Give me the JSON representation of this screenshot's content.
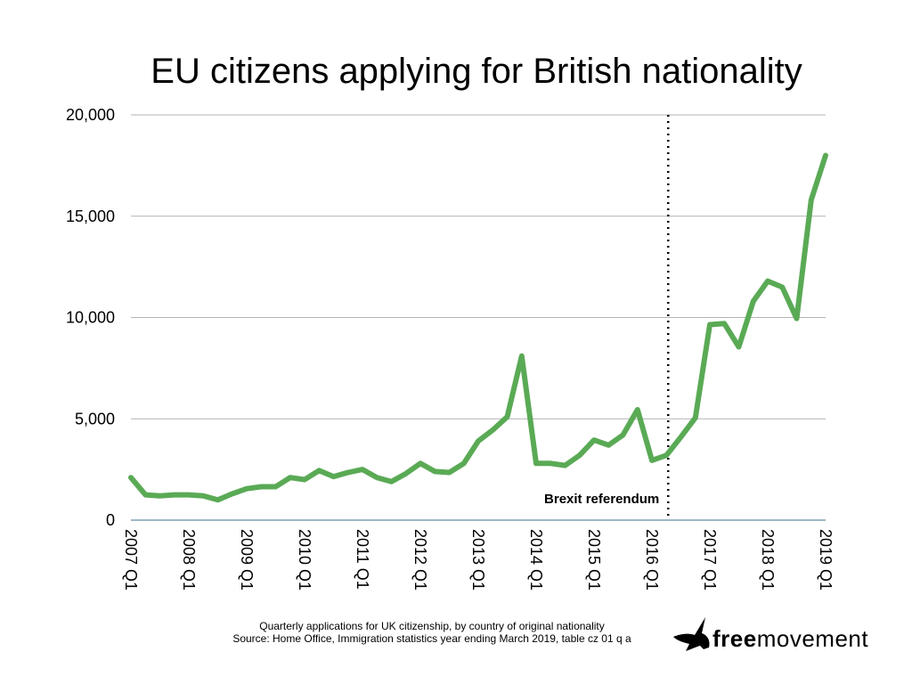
{
  "title": "EU citizens applying for British nationality",
  "footer": {
    "line1": "Quarterly applications for UK citizenship, by country of original nationality",
    "line2": "Source: Home Office, Immigration statistics year ending March 2019, table cz 01 q a"
  },
  "logo": {
    "bold": "free",
    "regular": "movement"
  },
  "colors": {
    "line": "#5aaa55",
    "grid": "#b3b3b3",
    "baseline": "#3b6e8f",
    "marker": "#000000"
  },
  "chart_data": {
    "type": "line",
    "title": "EU citizens applying for British nationality",
    "xlabel": "",
    "ylabel": "",
    "ylim": [
      0,
      20000
    ],
    "yticks": [
      0,
      5000,
      10000,
      15000,
      20000
    ],
    "ytick_labels": [
      "0",
      "5,000",
      "10,000",
      "15,000",
      "20,000"
    ],
    "xtick_labels": [
      "2007 Q1",
      "2008 Q1",
      "2009 Q1",
      "2010 Q1",
      "2011 Q1",
      "2012 Q1",
      "2013 Q1",
      "2014 Q1",
      "2015 Q1",
      "2016 Q1",
      "2017 Q1",
      "2018 Q1",
      "2019 Q1"
    ],
    "x": [
      "2007 Q1",
      "2007 Q2",
      "2007 Q3",
      "2007 Q4",
      "2008 Q1",
      "2008 Q2",
      "2008 Q3",
      "2008 Q4",
      "2009 Q1",
      "2009 Q2",
      "2009 Q3",
      "2009 Q4",
      "2010 Q1",
      "2010 Q2",
      "2010 Q3",
      "2010 Q4",
      "2011 Q1",
      "2011 Q2",
      "2011 Q3",
      "2011 Q4",
      "2012 Q1",
      "2012 Q2",
      "2012 Q3",
      "2012 Q4",
      "2013 Q1",
      "2013 Q2",
      "2013 Q3",
      "2013 Q4",
      "2014 Q1",
      "2014 Q2",
      "2014 Q3",
      "2014 Q4",
      "2015 Q1",
      "2015 Q2",
      "2015 Q3",
      "2015 Q4",
      "2016 Q1",
      "2016 Q2",
      "2016 Q3",
      "2016 Q4",
      "2017 Q1",
      "2017 Q2",
      "2017 Q3",
      "2017 Q4",
      "2018 Q1",
      "2018 Q2",
      "2018 Q3",
      "2018 Q4",
      "2019 Q1"
    ],
    "series": [
      {
        "values": [
          2100,
          1250,
          1200,
          1250,
          1250,
          1200,
          1000,
          1300,
          1550,
          1650,
          1650,
          2100,
          2000,
          2450,
          2150,
          2350,
          2500,
          2100,
          1900,
          2300,
          2800,
          2400,
          2350,
          2800,
          3900,
          4450,
          5100,
          8100,
          2800,
          2800,
          2700,
          3200,
          3950,
          3700,
          4200,
          5450,
          2950,
          3200,
          4100,
          5050,
          9650,
          9700,
          8550,
          10800,
          11800,
          11500,
          9950,
          15800,
          18000
        ]
      }
    ],
    "annotations": [
      {
        "text": "Brexit referendum",
        "x": "2016 Q2 end",
        "style": "dotted vertical line"
      }
    ],
    "grid": true,
    "legend": "none"
  }
}
